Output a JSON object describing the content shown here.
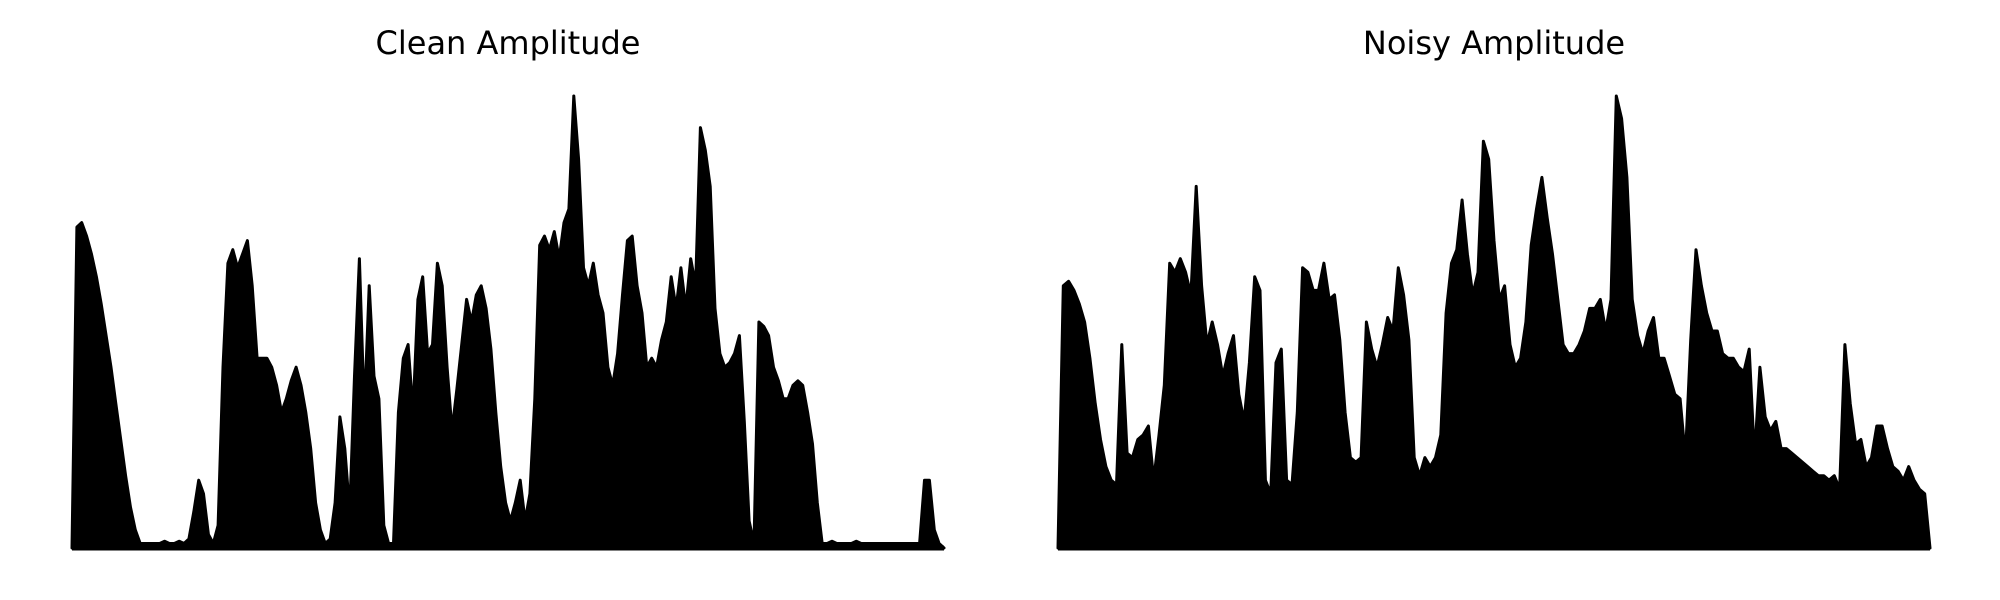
{
  "chart_data": [
    {
      "type": "area",
      "title": "Clean Amplitude",
      "xlabel": "",
      "ylabel": "",
      "axes_visible": false,
      "grid": false,
      "ylim": [
        0,
        1
      ],
      "line_color": "#000000",
      "fill_color": "#000000",
      "series": [
        {
          "values": [
            0.0,
            0.71,
            0.72,
            0.69,
            0.65,
            0.6,
            0.54,
            0.47,
            0.4,
            0.32,
            0.24,
            0.16,
            0.09,
            0.04,
            0.01,
            0.01,
            0.01,
            0.01,
            0.01,
            0.015,
            0.01,
            0.01,
            0.015,
            0.01,
            0.02,
            0.08,
            0.15,
            0.12,
            0.03,
            0.01,
            0.05,
            0.4,
            0.63,
            0.66,
            0.62,
            0.65,
            0.68,
            0.58,
            0.42,
            0.42,
            0.42,
            0.4,
            0.36,
            0.3,
            0.33,
            0.37,
            0.4,
            0.36,
            0.3,
            0.22,
            0.1,
            0.04,
            0.01,
            0.02,
            0.1,
            0.29,
            0.22,
            0.08,
            0.38,
            0.64,
            0.3,
            0.58,
            0.38,
            0.33,
            0.05,
            0.01,
            0.01,
            0.3,
            0.42,
            0.45,
            0.3,
            0.55,
            0.6,
            0.43,
            0.45,
            0.63,
            0.58,
            0.4,
            0.26,
            0.35,
            0.45,
            0.55,
            0.5,
            0.56,
            0.58,
            0.53,
            0.44,
            0.3,
            0.18,
            0.1,
            0.06,
            0.1,
            0.15,
            0.06,
            0.12,
            0.33,
            0.67,
            0.69,
            0.66,
            0.7,
            0.64,
            0.72,
            0.75,
            1.0,
            0.86,
            0.62,
            0.58,
            0.63,
            0.56,
            0.52,
            0.4,
            0.36,
            0.43,
            0.56,
            0.68,
            0.69,
            0.58,
            0.52,
            0.4,
            0.42,
            0.4,
            0.46,
            0.5,
            0.6,
            0.53,
            0.62,
            0.53,
            0.64,
            0.58,
            0.93,
            0.88,
            0.8,
            0.53,
            0.43,
            0.4,
            0.41,
            0.43,
            0.47,
            0.28,
            0.06,
            0.01,
            0.5,
            0.49,
            0.47,
            0.4,
            0.37,
            0.33,
            0.33,
            0.36,
            0.37,
            0.36,
            0.3,
            0.23,
            0.1,
            0.01,
            0.01,
            0.015,
            0.01,
            0.01,
            0.01,
            0.01,
            0.015,
            0.01,
            0.01,
            0.01,
            0.01,
            0.01,
            0.01,
            0.01,
            0.01,
            0.01,
            0.01,
            0.01,
            0.01,
            0.01,
            0.15,
            0.15,
            0.04,
            0.01,
            0.0
          ]
        }
      ]
    },
    {
      "type": "area",
      "title": "Noisy Amplitude",
      "xlabel": "",
      "ylabel": "",
      "axes_visible": false,
      "grid": false,
      "ylim": [
        0,
        1
      ],
      "line_color": "#000000",
      "fill_color": "#000000",
      "series": [
        {
          "values": [
            0.0,
            0.58,
            0.59,
            0.57,
            0.54,
            0.5,
            0.42,
            0.32,
            0.24,
            0.18,
            0.15,
            0.14,
            0.45,
            0.21,
            0.2,
            0.24,
            0.25,
            0.27,
            0.15,
            0.25,
            0.36,
            0.63,
            0.61,
            0.64,
            0.61,
            0.56,
            0.8,
            0.58,
            0.45,
            0.5,
            0.45,
            0.38,
            0.43,
            0.47,
            0.34,
            0.28,
            0.41,
            0.6,
            0.57,
            0.15,
            0.12,
            0.41,
            0.44,
            0.15,
            0.14,
            0.3,
            0.62,
            0.61,
            0.57,
            0.57,
            0.63,
            0.55,
            0.56,
            0.46,
            0.3,
            0.2,
            0.19,
            0.2,
            0.5,
            0.44,
            0.4,
            0.45,
            0.51,
            0.48,
            0.62,
            0.56,
            0.46,
            0.2,
            0.16,
            0.2,
            0.18,
            0.2,
            0.25,
            0.52,
            0.63,
            0.66,
            0.77,
            0.65,
            0.56,
            0.61,
            0.9,
            0.86,
            0.68,
            0.55,
            0.58,
            0.45,
            0.4,
            0.42,
            0.5,
            0.67,
            0.75,
            0.82,
            0.73,
            0.65,
            0.55,
            0.45,
            0.43,
            0.43,
            0.45,
            0.48,
            0.53,
            0.53,
            0.55,
            0.48,
            0.55,
            1.0,
            0.95,
            0.82,
            0.55,
            0.47,
            0.43,
            0.48,
            0.51,
            0.42,
            0.42,
            0.38,
            0.34,
            0.33,
            0.2,
            0.46,
            0.66,
            0.58,
            0.52,
            0.48,
            0.48,
            0.43,
            0.42,
            0.42,
            0.4,
            0.39,
            0.44,
            0.2,
            0.4,
            0.29,
            0.26,
            0.28,
            0.22,
            0.22,
            0.21,
            0.2,
            0.19,
            0.18,
            0.17,
            0.16,
            0.16,
            0.15,
            0.16,
            0.13,
            0.45,
            0.32,
            0.23,
            0.24,
            0.18,
            0.2,
            0.27,
            0.27,
            0.22,
            0.18,
            0.17,
            0.15,
            0.18,
            0.15,
            0.13,
            0.12,
            0.0
          ]
        }
      ]
    }
  ]
}
